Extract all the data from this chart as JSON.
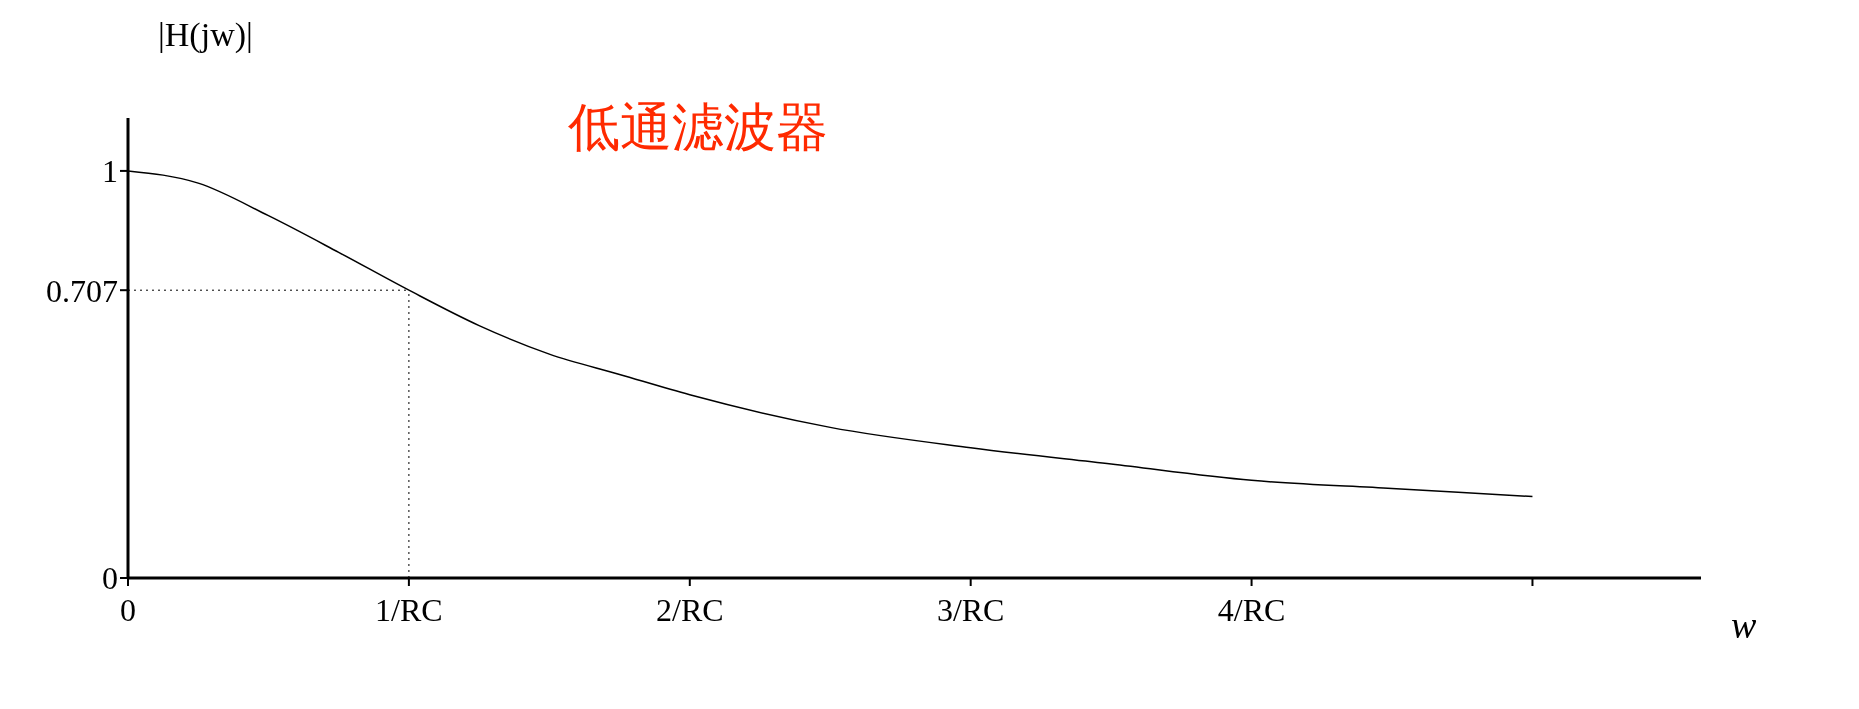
{
  "chart_data": {
    "type": "line",
    "title": "低通滤波器",
    "xlabel": "w",
    "ylabel": "|H(jw)|",
    "x": [
      0,
      0.25,
      0.5,
      0.75,
      1,
      1.25,
      1.5,
      1.75,
      2,
      2.5,
      3,
      3.5,
      4,
      4.5,
      5
    ],
    "series": [
      {
        "color": "#000000",
        "values": [
          1,
          0.97,
          0.89,
          0.8,
          0.707,
          0.62,
          0.55,
          0.5,
          0.45,
          0.37,
          0.32,
          0.28,
          0.24,
          0.22,
          0.2
        ]
      }
    ],
    "xlim": [
      0,
      5.6
    ],
    "ylim": [
      0,
      1.13
    ],
    "xticks": [
      0,
      {
        "value": 1,
        "label": "1/RC"
      },
      {
        "value": 2,
        "label": "2/RC"
      },
      {
        "value": 3,
        "label": "3/RC"
      },
      {
        "value": 4,
        "label": "4/RC"
      },
      {
        "value": 5,
        "label": null
      }
    ],
    "yticks": [
      0,
      0.707,
      1
    ],
    "ref_lines": [
      {
        "axis": "y",
        "value": 0.707,
        "line_style": "dotted"
      },
      {
        "axis": "x",
        "value": 1,
        "line_style": "dotted"
      }
    ],
    "marker": "none",
    "line_style": "solid",
    "grid": false,
    "legend": false
  }
}
